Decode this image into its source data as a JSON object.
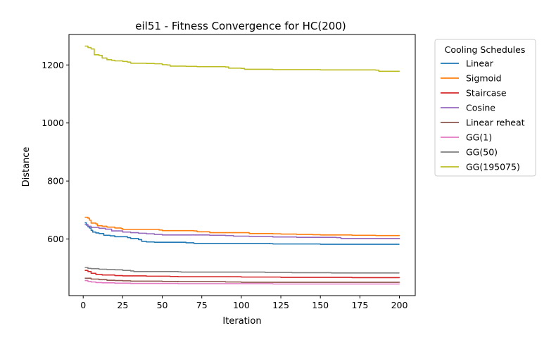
{
  "chart_data": {
    "type": "line",
    "title": "eil51 - Fitness Convergence for HC(200)",
    "xlabel": "Iteration",
    "ylabel": "Distance",
    "xlim": [
      -9,
      210
    ],
    "ylim": [
      405,
      1305
    ],
    "xticks": [
      0,
      25,
      50,
      75,
      100,
      125,
      150,
      175,
      200
    ],
    "yticks": [
      600,
      800,
      1000,
      1200
    ],
    "grid": false,
    "legend": {
      "title": "Cooling Schedules",
      "placement": "outside-right"
    },
    "series": [
      {
        "name": "Linear",
        "color": "#1f77b4",
        "points": [
          [
            1,
            656
          ],
          [
            2,
            648
          ],
          [
            3,
            642
          ],
          [
            4,
            638
          ],
          [
            5,
            630
          ],
          [
            6,
            624
          ],
          [
            8,
            621
          ],
          [
            10,
            619
          ],
          [
            13,
            613
          ],
          [
            17,
            611
          ],
          [
            20,
            608
          ],
          [
            28,
            605
          ],
          [
            30,
            602
          ],
          [
            35,
            598
          ],
          [
            37,
            592
          ],
          [
            40,
            590
          ],
          [
            45,
            589
          ],
          [
            65,
            587
          ],
          [
            70,
            585
          ],
          [
            75,
            585
          ],
          [
            118,
            584
          ],
          [
            120,
            583
          ],
          [
            148,
            583
          ],
          [
            150,
            582
          ],
          [
            200,
            582
          ]
        ]
      },
      {
        "name": "Sigmoid",
        "color": "#ff7f0e",
        "points": [
          [
            1,
            675
          ],
          [
            3,
            672
          ],
          [
            4,
            665
          ],
          [
            5,
            655
          ],
          [
            8,
            652
          ],
          [
            9,
            646
          ],
          [
            12,
            644
          ],
          [
            15,
            641
          ],
          [
            20,
            638
          ],
          [
            24,
            636
          ],
          [
            25,
            633
          ],
          [
            48,
            631
          ],
          [
            50,
            629
          ],
          [
            70,
            628
          ],
          [
            72,
            625
          ],
          [
            80,
            622
          ],
          [
            105,
            619
          ],
          [
            120,
            618
          ],
          [
            125,
            617
          ],
          [
            135,
            616
          ],
          [
            145,
            615
          ],
          [
            150,
            614
          ],
          [
            170,
            613
          ],
          [
            185,
            612
          ],
          [
            200,
            611
          ]
        ]
      },
      {
        "name": "Staircase",
        "color": "#d62728",
        "points": [
          [
            1,
            492
          ],
          [
            3,
            488
          ],
          [
            5,
            482
          ],
          [
            8,
            478
          ],
          [
            12,
            476
          ],
          [
            20,
            474
          ],
          [
            25,
            473
          ],
          [
            40,
            472
          ],
          [
            55,
            471
          ],
          [
            60,
            470
          ],
          [
            100,
            469
          ],
          [
            125,
            468
          ],
          [
            170,
            467
          ],
          [
            200,
            466
          ]
        ]
      },
      {
        "name": "Cosine",
        "color": "#9467bd",
        "points": [
          [
            1,
            650
          ],
          [
            3,
            644
          ],
          [
            5,
            640
          ],
          [
            10,
            637
          ],
          [
            14,
            634
          ],
          [
            18,
            628
          ],
          [
            25,
            624
          ],
          [
            30,
            622
          ],
          [
            35,
            620
          ],
          [
            40,
            618
          ],
          [
            45,
            616
          ],
          [
            50,
            614
          ],
          [
            80,
            613
          ],
          [
            90,
            612
          ],
          [
            95,
            610
          ],
          [
            105,
            609
          ],
          [
            120,
            607
          ],
          [
            135,
            606
          ],
          [
            160,
            605
          ],
          [
            163,
            602
          ],
          [
            200,
            600
          ]
        ]
      },
      {
        "name": "Linear reheat",
        "color": "#8c564b",
        "points": [
          [
            1,
            465
          ],
          [
            5,
            462
          ],
          [
            10,
            460
          ],
          [
            15,
            458
          ],
          [
            20,
            457
          ],
          [
            25,
            456
          ],
          [
            30,
            455
          ],
          [
            50,
            454
          ],
          [
            60,
            453
          ],
          [
            90,
            452
          ],
          [
            100,
            451
          ],
          [
            200,
            450
          ]
        ]
      },
      {
        "name": "GG(1)",
        "color": "#e377c2",
        "points": [
          [
            1,
            457
          ],
          [
            3,
            454
          ],
          [
            5,
            452
          ],
          [
            8,
            450
          ],
          [
            12,
            449
          ],
          [
            20,
            448
          ],
          [
            30,
            447
          ],
          [
            60,
            446
          ],
          [
            120,
            445
          ],
          [
            200,
            444
          ]
        ]
      },
      {
        "name": "GG(50)",
        "color": "#7f7f7f",
        "points": [
          [
            1,
            502
          ],
          [
            3,
            499
          ],
          [
            5,
            498
          ],
          [
            10,
            496
          ],
          [
            15,
            495
          ],
          [
            20,
            494
          ],
          [
            25,
            492
          ],
          [
            30,
            490
          ],
          [
            32,
            488
          ],
          [
            60,
            487
          ],
          [
            62,
            486
          ],
          [
            110,
            486
          ],
          [
            115,
            485
          ],
          [
            130,
            485
          ],
          [
            132,
            484
          ],
          [
            155,
            484
          ],
          [
            157,
            483
          ],
          [
            200,
            483
          ]
        ]
      },
      {
        "name": "GG(195075)",
        "color": "#bcbd22",
        "points": [
          [
            1,
            1265
          ],
          [
            3,
            1260
          ],
          [
            5,
            1255
          ],
          [
            7,
            1235
          ],
          [
            10,
            1233
          ],
          [
            12,
            1224
          ],
          [
            15,
            1218
          ],
          [
            18,
            1216
          ],
          [
            20,
            1214
          ],
          [
            25,
            1212
          ],
          [
            28,
            1210
          ],
          [
            30,
            1206
          ],
          [
            40,
            1205
          ],
          [
            45,
            1204
          ],
          [
            50,
            1201
          ],
          [
            53,
            1200
          ],
          [
            55,
            1196
          ],
          [
            65,
            1195
          ],
          [
            72,
            1194
          ],
          [
            90,
            1193
          ],
          [
            92,
            1189
          ],
          [
            100,
            1188
          ],
          [
            102,
            1185
          ],
          [
            118,
            1185
          ],
          [
            120,
            1184
          ],
          [
            150,
            1183
          ],
          [
            185,
            1182
          ],
          [
            187,
            1178
          ],
          [
            200,
            1177
          ]
        ]
      }
    ]
  }
}
